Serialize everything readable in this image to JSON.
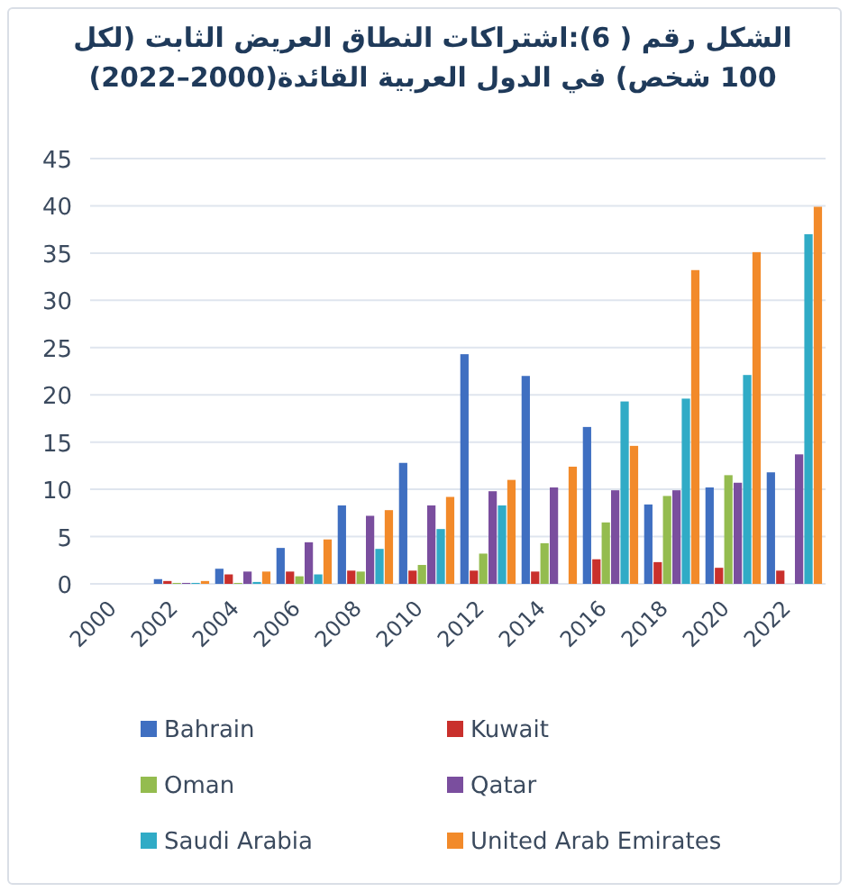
{
  "chart_data": {
    "type": "bar",
    "title": "الشكل رقم ( 6):اشتراكات النطاق العريض الثابت (لكل 100 شخص) في الدول العربية القائدة(2000–2022)",
    "categories": [
      "2000",
      "2002",
      "2004",
      "2006",
      "2008",
      "2010",
      "2012",
      "2014",
      "2016",
      "2018",
      "2020",
      "2022"
    ],
    "series": [
      {
        "name": "Bahrain",
        "color": "#3f6fc1",
        "values": [
          0,
          0.5,
          1.6,
          3.8,
          8.3,
          12.8,
          24.3,
          22.0,
          16.6,
          8.4,
          10.2,
          11.8
        ]
      },
      {
        "name": "Kuwait",
        "color": "#c9302c",
        "values": [
          0,
          0.3,
          1.0,
          1.3,
          1.4,
          1.4,
          1.4,
          1.3,
          2.6,
          2.3,
          1.7,
          1.4
        ]
      },
      {
        "name": "Oman",
        "color": "#94bc4f",
        "values": [
          0,
          0.1,
          0.1,
          0.8,
          1.3,
          2.0,
          3.2,
          4.3,
          6.5,
          9.3,
          11.5,
          null
        ]
      },
      {
        "name": "Qatar",
        "color": "#7a4e9e",
        "values": [
          0,
          0.1,
          1.3,
          4.4,
          7.2,
          8.3,
          9.8,
          10.2,
          9.9,
          9.9,
          10.7,
          13.7
        ]
      },
      {
        "name": "Saudi Arabia",
        "color": "#30abc6",
        "values": [
          0,
          0.1,
          0.2,
          1.0,
          3.7,
          5.8,
          8.3,
          null,
          19.3,
          19.6,
          22.1,
          37.0
        ]
      },
      {
        "name": "United Arab Emirates",
        "color": "#f28a2a",
        "values": [
          0,
          0.3,
          1.3,
          4.7,
          7.8,
          9.2,
          11.0,
          12.4,
          14.6,
          33.2,
          35.1,
          39.9
        ]
      }
    ],
    "ylim": [
      0,
      45
    ],
    "yticks": [
      0,
      5,
      10,
      15,
      20,
      25,
      30,
      35,
      40,
      45
    ],
    "grid": "y",
    "legend": "bottom"
  }
}
